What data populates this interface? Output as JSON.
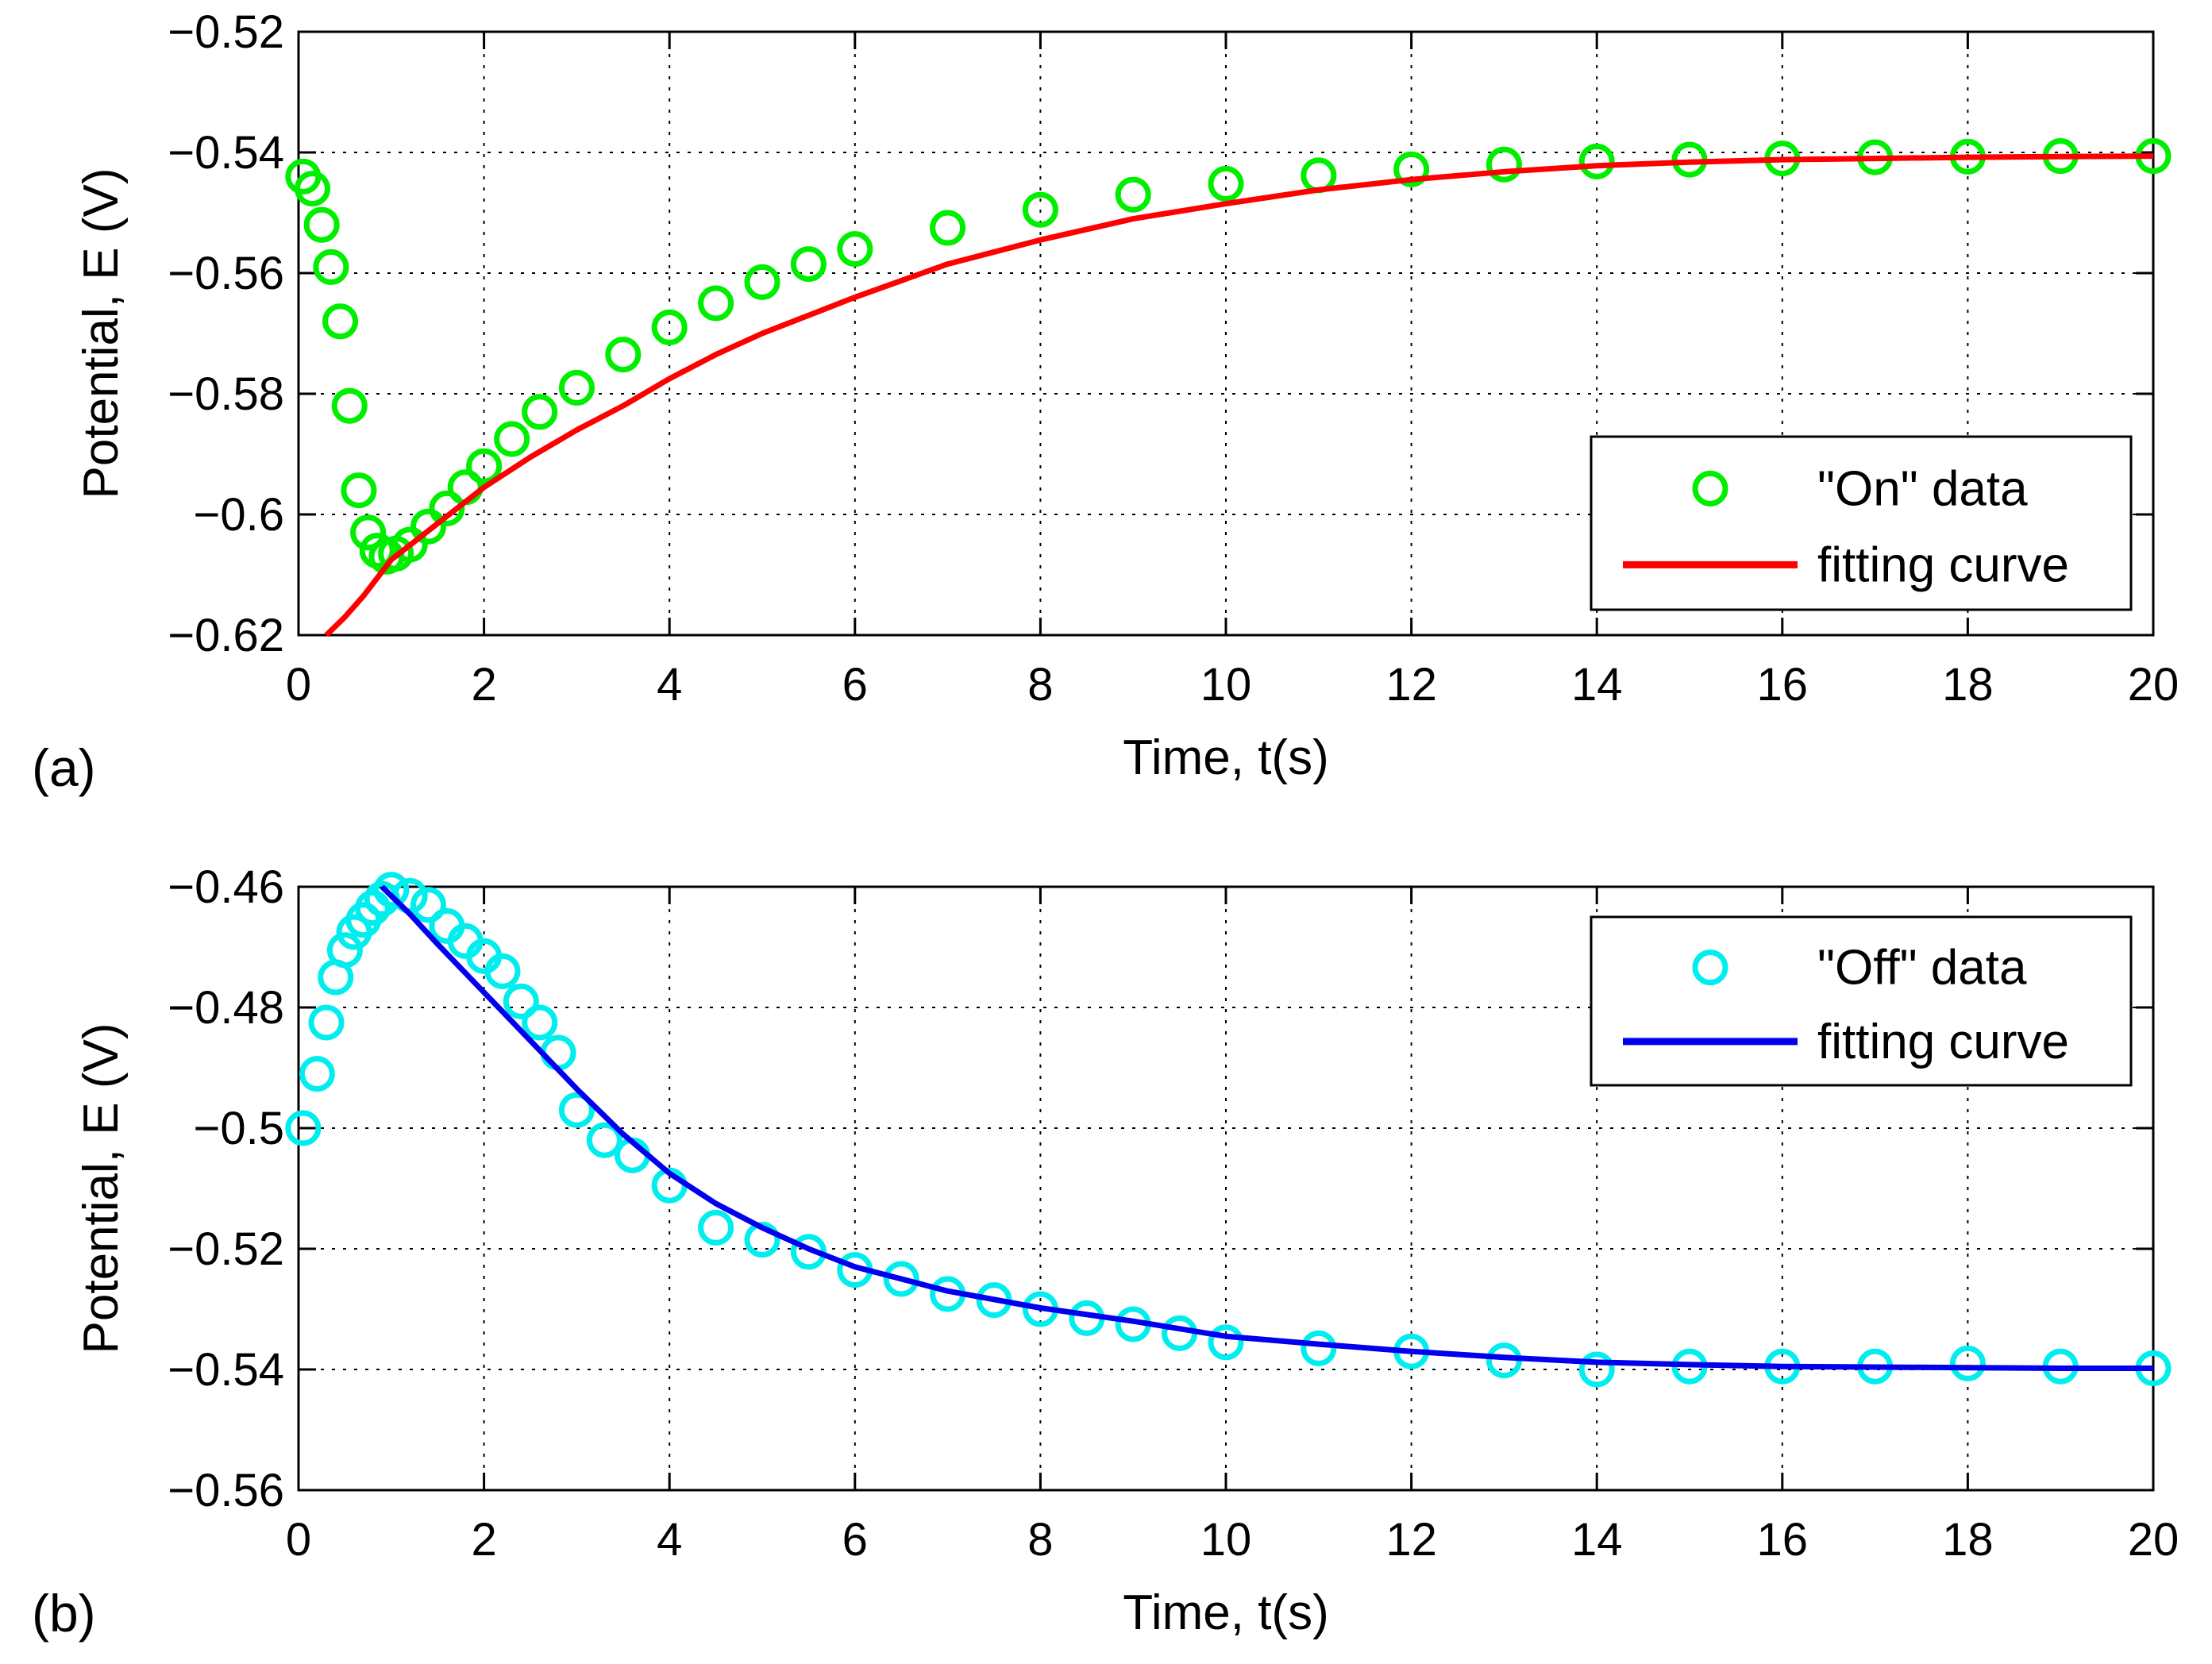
{
  "chart_data": [
    {
      "type": "scatter",
      "panel_label": "(a)",
      "xlabel": "Time, t(s)",
      "ylabel": "Potential, E (V)",
      "xlim": [
        0,
        20
      ],
      "ylim": [
        -0.62,
        -0.52
      ],
      "xticks": [
        0,
        2,
        4,
        6,
        8,
        10,
        12,
        14,
        16,
        18,
        20
      ],
      "yticks": [
        -0.62,
        -0.6,
        -0.58,
        -0.56,
        -0.54,
        -0.52
      ],
      "xtick_labels": [
        "0",
        "2",
        "4",
        "6",
        "8",
        "10",
        "12",
        "14",
        "16",
        "18",
        "20"
      ],
      "ytick_labels": [
        "−0.62",
        "−0.6",
        "−0.58",
        "−0.56",
        "−0.54",
        "−0.52"
      ],
      "grid": true,
      "legend_position": "lower-right",
      "series": [
        {
          "name": "\"On\" data",
          "kind": "markers",
          "marker": "circle-open",
          "color": "#00ee00",
          "x": [
            0.05,
            0.15,
            0.25,
            0.35,
            0.45,
            0.55,
            0.65,
            0.75,
            0.85,
            0.95,
            1.05,
            1.2,
            1.4,
            1.6,
            1.8,
            2.0,
            2.3,
            2.6,
            3.0,
            3.5,
            4.0,
            4.5,
            5.0,
            5.5,
            6.0,
            7.0,
            8.0,
            9.0,
            10.0,
            11.0,
            12.0,
            13.0,
            14.0,
            15.0,
            16.0,
            17.0,
            18.0,
            19.0,
            20.0
          ],
          "y": [
            -0.544,
            -0.546,
            -0.552,
            -0.559,
            -0.568,
            -0.582,
            -0.596,
            -0.603,
            -0.606,
            -0.607,
            -0.6065,
            -0.605,
            -0.602,
            -0.599,
            -0.5955,
            -0.592,
            -0.5875,
            -0.583,
            -0.579,
            -0.5735,
            -0.569,
            -0.565,
            -0.5615,
            -0.5585,
            -0.556,
            -0.5525,
            -0.5495,
            -0.547,
            -0.5452,
            -0.5438,
            -0.5428,
            -0.542,
            -0.5415,
            -0.5412,
            -0.541,
            -0.5408,
            -0.5407,
            -0.5406,
            -0.5406
          ]
        },
        {
          "name": "fitting curve",
          "kind": "line",
          "color": "#ff0000",
          "x": [
            0.3,
            0.5,
            0.7,
            1.0,
            1.5,
            2.0,
            2.5,
            3.0,
            3.5,
            4.0,
            4.5,
            5.0,
            5.5,
            6.0,
            7.0,
            8.0,
            9.0,
            10.0,
            11.0,
            12.0,
            13.0,
            14.0,
            15.0,
            16.0,
            17.0,
            18.0,
            19.0,
            20.0
          ],
          "y": [
            -0.62,
            -0.617,
            -0.6135,
            -0.6075,
            -0.6015,
            -0.5955,
            -0.5905,
            -0.586,
            -0.582,
            -0.5775,
            -0.5735,
            -0.57,
            -0.567,
            -0.564,
            -0.5585,
            -0.5545,
            -0.551,
            -0.5485,
            -0.5462,
            -0.5445,
            -0.5432,
            -0.5422,
            -0.5416,
            -0.5412,
            -0.541,
            -0.5408,
            -0.5407,
            -0.5406
          ]
        }
      ]
    },
    {
      "type": "scatter",
      "panel_label": "(b)",
      "xlabel": "Time, t(s)",
      "ylabel": "Potential, E (V)",
      "xlim": [
        0,
        20
      ],
      "ylim": [
        -0.56,
        -0.46
      ],
      "xticks": [
        0,
        2,
        4,
        6,
        8,
        10,
        12,
        14,
        16,
        18,
        20
      ],
      "yticks": [
        -0.56,
        -0.54,
        -0.52,
        -0.5,
        -0.48,
        -0.46
      ],
      "xtick_labels": [
        "0",
        "2",
        "4",
        "6",
        "8",
        "10",
        "12",
        "14",
        "16",
        "18",
        "20"
      ],
      "ytick_labels": [
        "−0.56",
        "−0.54",
        "−0.52",
        "−0.5",
        "−0.48",
        "−0.46"
      ],
      "grid": true,
      "legend_position": "upper-right",
      "series": [
        {
          "name": "\"Off\" data",
          "kind": "markers",
          "marker": "circle-open",
          "color": "#00eeee",
          "x": [
            0.05,
            0.2,
            0.3,
            0.4,
            0.5,
            0.6,
            0.7,
            0.8,
            0.9,
            1.0,
            1.2,
            1.4,
            1.6,
            1.8,
            2.0,
            2.2,
            2.4,
            2.6,
            2.8,
            3.0,
            3.3,
            3.6,
            4.0,
            4.5,
            5.0,
            5.5,
            6.0,
            6.5,
            7.0,
            7.5,
            8.0,
            8.5,
            9.0,
            9.5,
            10.0,
            11.0,
            12.0,
            13.0,
            14.0,
            15.0,
            16.0,
            17.0,
            18.0,
            19.0,
            20.0
          ],
          "y": [
            -0.5,
            -0.491,
            -0.4825,
            -0.475,
            -0.4705,
            -0.4675,
            -0.4655,
            -0.4635,
            -0.462,
            -0.4605,
            -0.4615,
            -0.463,
            -0.4665,
            -0.469,
            -0.4715,
            -0.474,
            -0.479,
            -0.4825,
            -0.4875,
            -0.497,
            -0.502,
            -0.5045,
            -0.5095,
            -0.5165,
            -0.5185,
            -0.5205,
            -0.5235,
            -0.525,
            -0.5275,
            -0.5285,
            -0.53,
            -0.5315,
            -0.5325,
            -0.534,
            -0.5355,
            -0.5365,
            -0.537,
            -0.5385,
            -0.54,
            -0.5395,
            -0.5395,
            -0.5395,
            -0.539,
            -0.5395,
            -0.5398
          ]
        },
        {
          "name": "fitting curve",
          "kind": "line",
          "color": "#0000ee",
          "x": [
            0.9,
            1.2,
            1.5,
            2.0,
            2.5,
            3.0,
            3.5,
            4.0,
            4.5,
            5.0,
            5.5,
            6.0,
            7.0,
            8.0,
            9.0,
            10.0,
            11.0,
            12.0,
            13.0,
            14.0,
            15.0,
            16.0,
            17.0,
            18.0,
            19.0,
            20.0
          ],
          "y": [
            -0.46,
            -0.4645,
            -0.4695,
            -0.4775,
            -0.4855,
            -0.4935,
            -0.501,
            -0.5075,
            -0.5125,
            -0.5165,
            -0.52,
            -0.523,
            -0.527,
            -0.5298,
            -0.532,
            -0.5345,
            -0.5358,
            -0.537,
            -0.538,
            -0.5388,
            -0.5392,
            -0.5395,
            -0.5396,
            -0.5397,
            -0.5398,
            -0.5398
          ]
        }
      ]
    }
  ]
}
